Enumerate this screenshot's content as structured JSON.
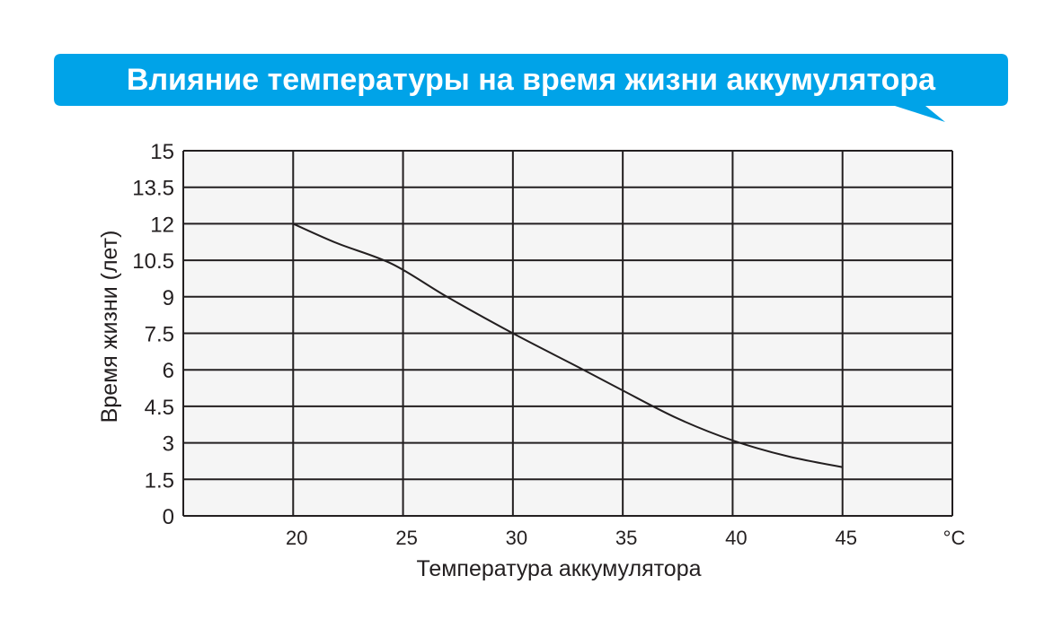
{
  "chart_data": {
    "type": "line",
    "title": "Влияние температуры на время жизни аккумулятора",
    "xlabel": "Температура аккумулятора",
    "ylabel": "Время жизни (лет)",
    "x_unit": "°C",
    "xlim": [
      15,
      50
    ],
    "ylim": [
      0,
      15
    ],
    "x_ticks": [
      20,
      25,
      30,
      35,
      40,
      45
    ],
    "y_ticks": [
      "0",
      "1.5",
      "3",
      "4.5",
      "6",
      "7.5",
      "9",
      "10.5",
      "12",
      "13.5",
      "15"
    ],
    "grid": true,
    "series": [
      {
        "x": [
          20,
          22,
          24.5,
          27,
          30,
          33,
          35,
          37.5,
          40,
          42.5,
          45
        ],
        "y": [
          12,
          11.2,
          10.35,
          9.0,
          7.5,
          6.1,
          5.15,
          4.0,
          3.1,
          2.45,
          2.0
        ]
      }
    ],
    "colors": {
      "banner": "#00a3e8",
      "line": "#231f20",
      "plot_bg": "#f5f5f5",
      "grid": "#231f20"
    }
  }
}
